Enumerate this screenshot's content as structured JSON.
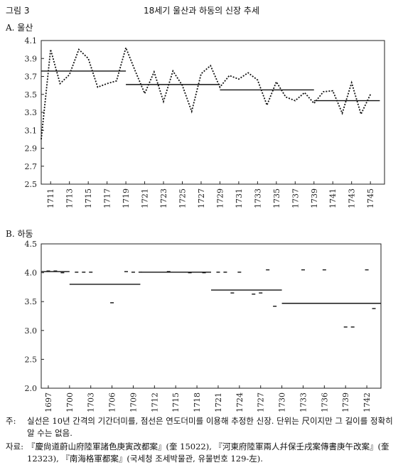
{
  "figure": {
    "label": "그림 3",
    "title": "18세기 울산과 하동의 신장 추세"
  },
  "notes": {
    "main_prefix": "주:",
    "main": "실선은 10년 간격의 기간더미를, 점선은 연도더미를 이용해 추정한 신장. 단위는 尺이지만 그 길이를 정확히 알 수는 없음.",
    "source_prefix": "자료:",
    "source": "『慶尙道蔚山府陸軍諸色庚寅改都案』(奎 15022), 『河東府陸軍兩人幷保壬戌案傳書庚午改案』(奎 12323), 『南海格軍都案』(국세청 조세박물관, 유물번호 129-左)."
  },
  "chart_data": [
    {
      "panel": "A. 울산",
      "type": "line",
      "ylim": [
        2.5,
        4.1
      ],
      "yticks": [
        "4.1",
        "3.9",
        "3.7",
        "3.5",
        "3.3",
        "3.1",
        "2.9",
        "2.7",
        "2.5"
      ],
      "xlim": [
        1710,
        1746.5
      ],
      "xticks": [
        "1711",
        "1713",
        "1715",
        "1717",
        "1719",
        "1721",
        "1723",
        "1725",
        "1727",
        "1729",
        "1731",
        "1733",
        "1735",
        "1737",
        "1739",
        "1741",
        "1743",
        "1745"
      ],
      "series": [
        {
          "style": "dotted",
          "x": [
            1710,
            1711,
            1712,
            1713,
            1714,
            1715,
            1716,
            1717,
            1718,
            1719,
            1720,
            1721,
            1722,
            1723,
            1724,
            1725,
            1726,
            1727,
            1728,
            1729,
            1730,
            1731,
            1732,
            1733,
            1734,
            1735,
            1736,
            1737,
            1738,
            1739,
            1740,
            1741,
            1742,
            1743,
            1744,
            1745
          ],
          "y": [
            3.0,
            4.0,
            3.62,
            3.72,
            4.0,
            3.9,
            3.58,
            3.62,
            3.65,
            4.02,
            3.76,
            3.51,
            3.75,
            3.42,
            3.76,
            3.6,
            3.31,
            3.73,
            3.82,
            3.58,
            3.71,
            3.67,
            3.74,
            3.66,
            3.38,
            3.64,
            3.47,
            3.43,
            3.52,
            3.4,
            3.53,
            3.54,
            3.29,
            3.63,
            3.28,
            3.5
          ]
        },
        {
          "style": "solid",
          "segments": [
            {
              "x": [
                1710,
                1719
              ],
              "y": 3.76
            },
            {
              "x": [
                1719,
                1729
              ],
              "y": 3.61
            },
            {
              "x": [
                1729,
                1739
              ],
              "y": 3.55
            },
            {
              "x": [
                1739,
                1746
              ],
              "y": 3.43
            }
          ]
        }
      ]
    },
    {
      "panel": "B. 하동",
      "type": "line",
      "ylim": [
        2.0,
        4.5
      ],
      "yticks": [
        "4.5",
        "4.0",
        "3.5",
        "3.0",
        "2.5",
        "2.0"
      ],
      "xlim": [
        1696,
        1744
      ],
      "xticks": [
        "1697",
        "1700",
        "1703",
        "1706",
        "1709",
        "1712",
        "1715",
        "1718",
        "1721",
        "1724",
        "1727",
        "1730",
        "1733",
        "1736",
        "1739",
        "1742"
      ],
      "series": [
        {
          "style": "solid",
          "segments": [
            {
              "x": [
                1696,
                1700
              ],
              "y": 4.02
            },
            {
              "x": [
                1700,
                1710
              ],
              "y": 3.8
            },
            {
              "x": [
                1710,
                1720
              ],
              "y": 4.01
            },
            {
              "x": [
                1720,
                1730
              ],
              "y": 3.7
            },
            {
              "x": [
                1730,
                1744
              ],
              "y": 3.47
            }
          ]
        },
        {
          "style": "dashed-points",
          "x": [
            1697,
            1698,
            1699,
            1701,
            1702,
            1703,
            1706,
            1708,
            1709,
            1710,
            1714,
            1717,
            1719,
            1721,
            1722,
            1723,
            1724,
            1726,
            1727,
            1728,
            1729,
            1733,
            1736,
            1739,
            1740,
            1742,
            1743
          ],
          "y": [
            4.03,
            4.03,
            4.0,
            4.01,
            4.01,
            4.01,
            3.48,
            4.02,
            4.01,
            4.01,
            4.02,
            4.0,
            4.0,
            4.01,
            4.01,
            3.65,
            4.01,
            3.63,
            3.65,
            4.05,
            3.42,
            4.05,
            4.05,
            3.06,
            3.06,
            4.05,
            3.38
          ]
        }
      ]
    }
  ]
}
